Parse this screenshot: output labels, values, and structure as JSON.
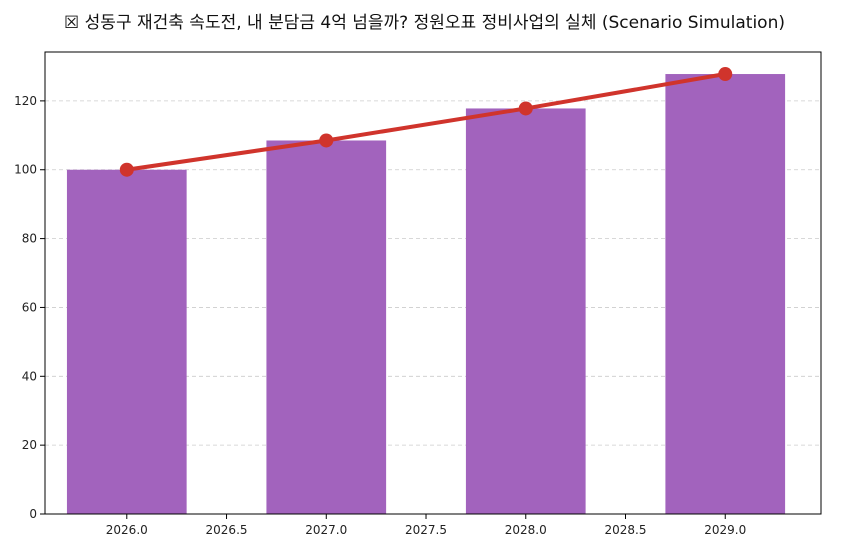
{
  "chart_data": {
    "type": "bar",
    "title": "☒ 성동구 재건축 속도전, 내 분담금 4억 넘을까? 정원오표 정비사업의 실체 (Scenario Simulation)",
    "xlabel": "",
    "ylabel": "",
    "x": [
      2026,
      2027,
      2028,
      2029
    ],
    "bar_width": 0.6,
    "series": [
      {
        "kind": "bar",
        "values": [
          100,
          108.5,
          117.8,
          127.8
        ],
        "color": "#a263bd"
      },
      {
        "kind": "line",
        "values": [
          100,
          108.5,
          117.8,
          127.8
        ],
        "color": "#d0342c",
        "marker": "circle"
      }
    ],
    "xlim": [
      2025.59,
      2029.48
    ],
    "ylim": [
      0,
      134.2
    ],
    "xticks": [
      2026.0,
      2026.5,
      2027.0,
      2027.5,
      2028.0,
      2028.5,
      2029.0
    ],
    "xtick_labels": [
      "2026.0",
      "2026.5",
      "2027.0",
      "2027.5",
      "2028.0",
      "2028.5",
      "2029.0"
    ],
    "yticks": [
      0,
      20,
      40,
      60,
      80,
      100,
      120
    ],
    "ytick_labels": [
      "0",
      "20",
      "40",
      "60",
      "80",
      "100",
      "120"
    ],
    "grid": {
      "y": true,
      "x": false,
      "style": "dashed"
    },
    "legend": "none"
  }
}
